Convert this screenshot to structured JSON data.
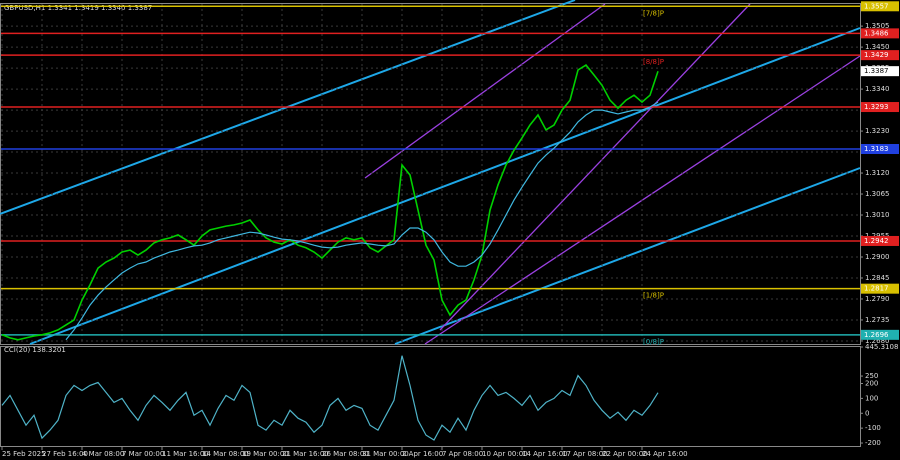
{
  "chart_data": [
    {
      "type": "line",
      "title": "GBPUSD,H1  1.3341 1.3419 1.3340 1.3387",
      "categories": [
        "25 Feb 2025",
        null,
        null,
        null,
        null,
        "27 Feb 16:00",
        null,
        null,
        null,
        null,
        "4 Mar 08:00",
        null,
        null,
        null,
        null,
        "7 Mar 00:00",
        null,
        null,
        null,
        null,
        "11 Mar 16:00",
        null,
        null,
        null,
        null,
        "14 Mar 08:00",
        null,
        null,
        null,
        null,
        "19 Mar 00:00",
        null,
        null,
        null,
        null,
        "21 Mar 16:00",
        null,
        null,
        null,
        null,
        "26 Mar 08:00",
        null,
        null,
        null,
        null,
        "31 Mar 00:00",
        null,
        null,
        null,
        null,
        "2 Apr 16:00",
        null,
        null,
        null,
        null,
        "7 Apr 08:00",
        null,
        null,
        null,
        null,
        "10 Apr 00:00",
        null,
        null,
        null,
        null,
        "14 Apr 16:00",
        null,
        null,
        null,
        null,
        "17 Apr 08:00",
        null,
        null,
        null,
        null,
        "22 Apr 00:00",
        null,
        null,
        null,
        null,
        "24 Apr 16:00",
        null,
        null
      ],
      "series": [
        {
          "color": "#00d000",
          "values": [
            1.2696,
            1.2688,
            1.2683,
            1.2688,
            1.2693,
            1.2696,
            1.2701,
            1.2709,
            1.2722,
            1.2735,
            1.2787,
            1.2827,
            1.2871,
            1.2887,
            1.2897,
            1.2913,
            1.2918,
            1.2905,
            1.2918,
            1.2937,
            1.2945,
            1.295,
            1.2958,
            1.2945,
            1.2931,
            1.2955,
            1.2971,
            1.2976,
            1.2981,
            1.2984,
            1.2989,
            1.2997,
            1.2971,
            1.295,
            1.2939,
            1.2934,
            1.2945,
            1.2931,
            1.2924,
            1.2913,
            1.2897,
            1.2918,
            1.2939,
            1.295,
            1.2945,
            1.295,
            1.2924,
            1.2913,
            1.2929,
            1.2945,
            1.3141,
            1.3115,
            1.3023,
            1.2931,
            1.2892,
            1.2787,
            1.2748,
            1.2774,
            1.2787,
            1.284,
            1.2905,
            1.3023,
            1.3089,
            1.3141,
            1.318,
            1.3212,
            1.3246,
            1.3272,
            1.3233,
            1.3246,
            1.3285,
            1.3311,
            1.339,
            1.3403,
            1.3377,
            1.335,
            1.3311,
            1.329,
            1.3311,
            1.3324,
            1.3306,
            1.3324,
            1.3387
          ]
        },
        {
          "color": "#3fb8e0",
          "values": [
            null,
            null,
            null,
            null,
            null,
            null,
            null,
            null,
            1.2683,
            1.2709,
            1.274,
            1.2774,
            1.28,
            1.2821,
            1.284,
            1.2858,
            1.2871,
            1.2882,
            1.2887,
            1.2897,
            1.2905,
            1.2913,
            1.2918,
            1.2924,
            1.2929,
            1.2931,
            1.2937,
            1.2945,
            1.295,
            1.2955,
            1.296,
            1.2965,
            1.2963,
            1.2958,
            1.2952,
            1.2947,
            1.2945,
            1.2942,
            1.2937,
            1.2931,
            1.2926,
            1.2924,
            1.2926,
            1.2931,
            1.2934,
            1.2937,
            1.2934,
            1.2931,
            1.2929,
            1.2934,
            1.2958,
            1.2976,
            1.2976,
            1.2965,
            1.2945,
            1.2913,
            1.2887,
            1.2876,
            1.2876,
            1.2887,
            1.2905,
            1.2934,
            1.2971,
            1.301,
            1.3049,
            1.3083,
            1.3115,
            1.3146,
            1.3167,
            1.3185,
            1.3206,
            1.3227,
            1.3254,
            1.3272,
            1.3285,
            1.3285,
            1.328,
            1.3275,
            1.328,
            1.3285,
            1.3285,
            1.3293,
            1.3306
          ]
        }
      ],
      "ylim": [
        1.2672,
        1.3563
      ],
      "yticks": [
        1.3505,
        {
          "value": 1.345,
          "label": "1.3450"
        },
        1.3395,
        {
          "value": 1.334,
          "label": "1.3340"
        },
        1.3285,
        {
          "value": 1.323,
          "label": "1.3230"
        },
        1.3175,
        {
          "value": 1.312,
          "label": "1.3120"
        },
        1.3065,
        {
          "value": 1.301,
          "label": "1.3010"
        },
        1.2955,
        {
          "value": 1.29,
          "label": "1.2900"
        },
        1.2845,
        {
          "value": 1.279,
          "label": "1.2790"
        },
        1.2735,
        {
          "value": 1.268,
          "label": "1.2680"
        }
      ],
      "grid": true,
      "levels": [
        {
          "value": 1.3557,
          "label": "1.3557",
          "color": "#d8c000",
          "tag": "[7/8]P"
        },
        {
          "value": 1.3486,
          "label": "1.3486",
          "color": "#e02020"
        },
        {
          "value": 1.3429,
          "label": "1.3429",
          "color": "#e02020",
          "tag": "[8/8]P"
        },
        {
          "value": 1.3293,
          "label": "1.3293",
          "color": "#e02020"
        },
        {
          "value": 1.3183,
          "label": "1.3183",
          "color": "#2040e0"
        },
        {
          "value": 1.2942,
          "label": "1.2942",
          "color": "#e02020"
        },
        {
          "value": 1.2817,
          "label": "1.2817",
          "color": "#d8c000",
          "tag": "[1/8]P"
        },
        {
          "value": 1.2696,
          "label": "1.2696",
          "color": "#20b0b0",
          "tag": "[0/8]P"
        }
      ]
    },
    {
      "type": "line",
      "title": "CCI(20) 138.3201",
      "series": [
        {
          "color": "#4fb3c8",
          "values": [
            53,
            120,
            20,
            -80,
            -13,
            -167,
            -113,
            -47,
            120,
            187,
            153,
            187,
            207,
            140,
            73,
            100,
            20,
            -47,
            53,
            120,
            73,
            20,
            87,
            140,
            -13,
            20,
            -80,
            33,
            120,
            87,
            187,
            140,
            -80,
            -113,
            -47,
            -80,
            20,
            -33,
            -60,
            -127,
            -80,
            53,
            100,
            20,
            53,
            33,
            -80,
            -113,
            -13,
            87,
            387,
            187,
            -47,
            -147,
            -180,
            -80,
            -127,
            -33,
            -113,
            20,
            120,
            187,
            120,
            140,
            100,
            53,
            120,
            20,
            73,
            100,
            153,
            120,
            253,
            187,
            87,
            20,
            -33,
            7,
            -47,
            20,
            -13,
            53,
            138
          ]
        }
      ],
      "ylim": [
        -220,
        445.3108
      ],
      "yticks": [
        445.3108,
        250,
        200,
        100,
        0,
        -100,
        -200
      ]
    }
  ]
}
